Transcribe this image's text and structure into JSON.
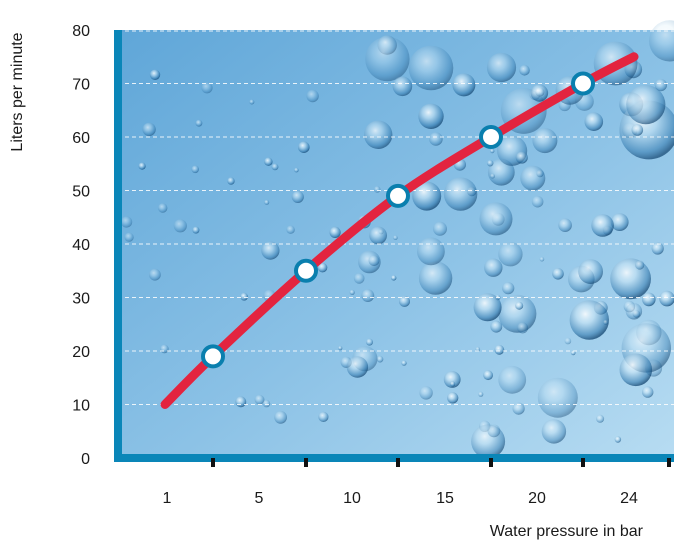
{
  "chart_data": {
    "type": "line",
    "title": "",
    "xlabel": "Water pressure in bar",
    "ylabel": "Liters per minute",
    "categories": [
      "1",
      "5",
      "10",
      "15",
      "20",
      "24"
    ],
    "ylim": [
      0,
      80
    ],
    "yticks": [
      "0",
      "10",
      "20",
      "30",
      "40",
      "50",
      "60",
      "70",
      "80"
    ],
    "grid": true,
    "markers": [
      {
        "x": "between 1 and 5",
        "y": 19
      },
      {
        "x": "between 5 and 10",
        "y": 35
      },
      {
        "x": "between 10 and 15",
        "y": 49
      },
      {
        "x": "between 15 and 20",
        "y": 60
      },
      {
        "x": "between 20 and 24",
        "y": 70
      }
    ],
    "curve_range": {
      "y_start": 10,
      "y_end": 75
    },
    "background": "water with air bubbles",
    "colors": {
      "axis": "#0a86b8",
      "line": "#e3243f",
      "marker_fill": "#ffffff",
      "marker_stroke": "#0a7fae",
      "plot_top": "#6fb0dd",
      "plot_bottom": "#aed5ef",
      "grid": "#ffffff"
    }
  }
}
